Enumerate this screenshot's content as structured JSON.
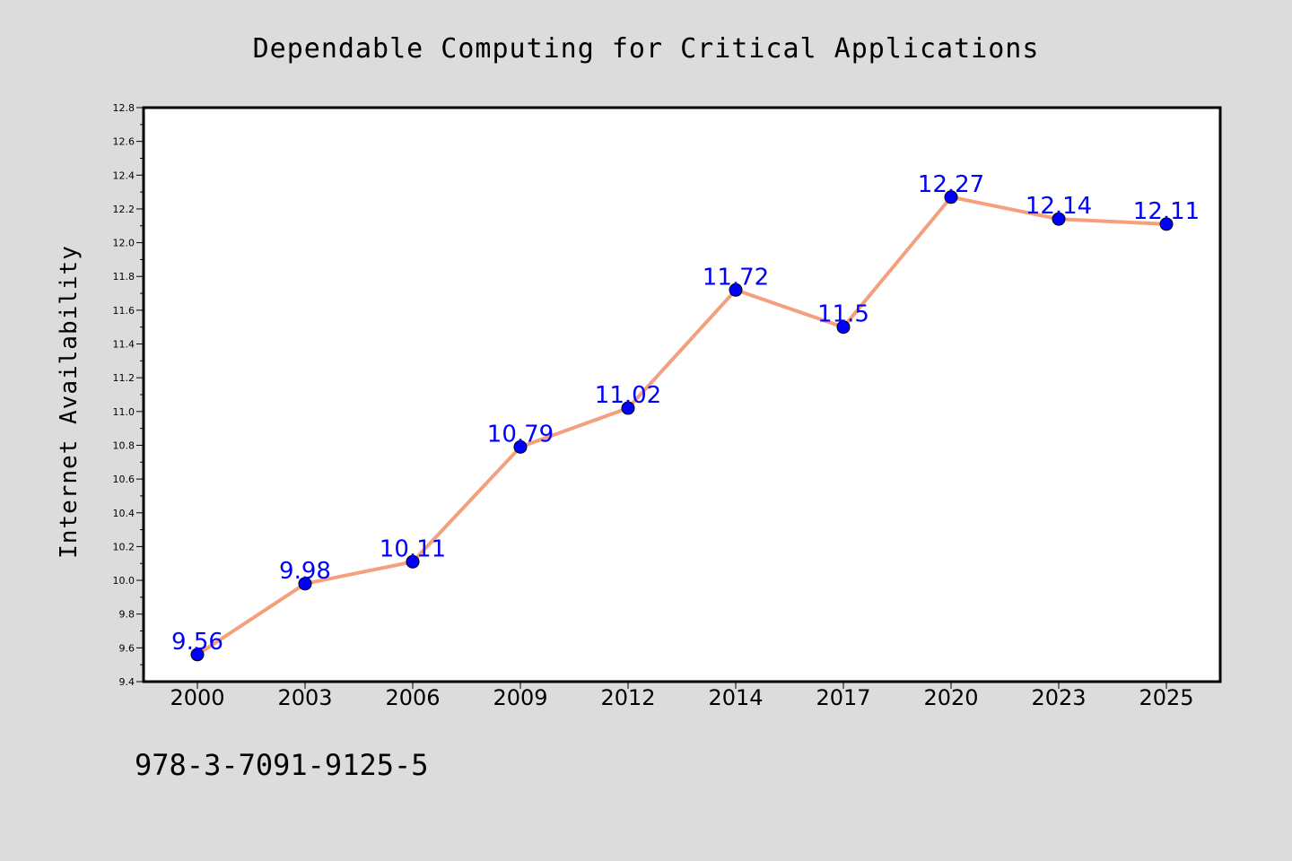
{
  "caption": "978-3-7091-9125-5",
  "chart_data": {
    "type": "line",
    "title": "Dependable Computing for Critical Applications",
    "xlabel": "",
    "ylabel": "Internet Availability",
    "categories": [
      "2000",
      "2003",
      "2006",
      "2009",
      "2012",
      "2014",
      "2017",
      "2020",
      "2023",
      "2025"
    ],
    "series": [
      {
        "values": [
          9.56,
          9.98,
          10.11,
          10.79,
          11.02,
          11.72,
          11.5,
          12.27,
          12.14,
          12.11
        ],
        "labels": [
          "9.56",
          "9.98",
          "10.11",
          "10.79",
          "11.02",
          "11.72",
          "11.5",
          "12.27",
          "12.14",
          "12.11"
        ],
        "line_color": "#f4a07e",
        "marker_color": "#0000ff"
      }
    ],
    "ylim": [
      9.4,
      12.8
    ],
    "yticks": [
      "9.4",
      "9.6",
      "9.8",
      "10.0",
      "10.2",
      "10.4",
      "10.6",
      "10.8",
      "11.0",
      "11.2",
      "11.4",
      "11.6",
      "11.8",
      "12.0",
      "12.2",
      "12.4",
      "12.6",
      "12.8"
    ],
    "grid": false,
    "legend": "none"
  }
}
